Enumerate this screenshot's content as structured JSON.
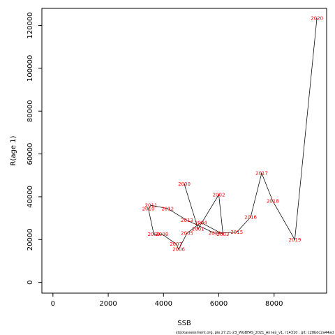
{
  "chart_data": {
    "type": "scatter",
    "connected": true,
    "xlabel": "SSB",
    "ylabel": "R(age 1)",
    "xlim": [
      -400,
      9900
    ],
    "ylim": [
      -5000,
      128000
    ],
    "x_ticks": [
      0,
      2000,
      4000,
      6000,
      8000
    ],
    "y_ticks": [
      0,
      20000,
      40000,
      60000,
      80000,
      100000,
      120000
    ],
    "grid": false,
    "line_color": "#000000",
    "label_color": "#ff0000",
    "points": [
      {
        "label": "2000",
        "x": 4750,
        "y": 46000
      },
      {
        "label": "2001",
        "x": 5250,
        "y": 25000
      },
      {
        "label": "2002",
        "x": 6000,
        "y": 41000
      },
      {
        "label": "2003",
        "x": 6150,
        "y": 22500
      },
      {
        "label": "2004",
        "x": 5350,
        "y": 28000
      },
      {
        "label": "2005",
        "x": 4850,
        "y": 23000
      },
      {
        "label": "2006",
        "x": 4550,
        "y": 15500
      },
      {
        "label": "2007",
        "x": 4450,
        "y": 18000
      },
      {
        "label": "2008",
        "x": 3950,
        "y": 22500
      },
      {
        "label": "2009",
        "x": 3650,
        "y": 22500
      },
      {
        "label": "2010",
        "x": 3450,
        "y": 34500
      },
      {
        "label": "2011",
        "x": 3550,
        "y": 36000
      },
      {
        "label": "2012",
        "x": 4150,
        "y": 34500
      },
      {
        "label": "2013",
        "x": 4850,
        "y": 29000
      },
      {
        "label": "2014",
        "x": 5850,
        "y": 23000
      },
      {
        "label": "2015",
        "x": 6650,
        "y": 23500
      },
      {
        "label": "2016",
        "x": 7150,
        "y": 30500
      },
      {
        "label": "2017",
        "x": 7550,
        "y": 51000
      },
      {
        "label": "2018",
        "x": 7950,
        "y": 38000
      },
      {
        "label": "2019",
        "x": 8750,
        "y": 20000
      },
      {
        "label": "2020",
        "x": 9550,
        "y": 123500
      }
    ]
  },
  "footer": "stockassessment.org, pie.27.21-23_WGBFAS_2021_Annex_v1, r14310 , git: c28bdc2a44ad"
}
